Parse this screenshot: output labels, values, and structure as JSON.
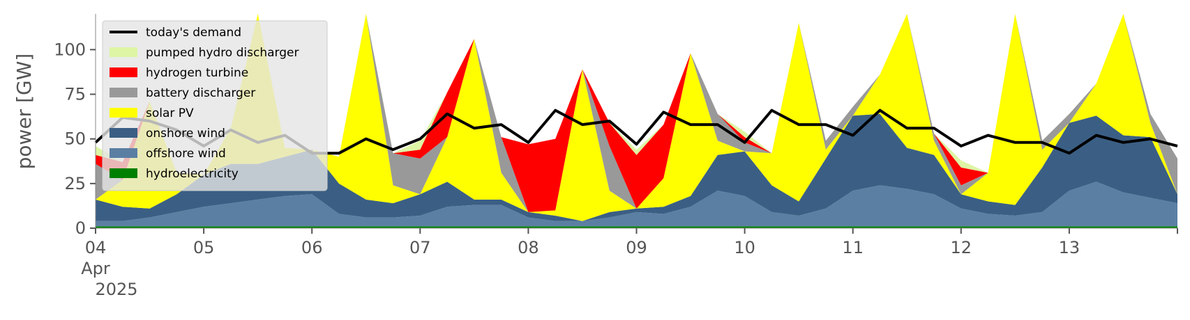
{
  "chart_data": {
    "type": "area",
    "ylabel": "power [GW]",
    "ylim": [
      0,
      120
    ],
    "xlim": [
      "2025-04-04T00:00",
      "2025-04-14T00:00"
    ],
    "yticks": [
      0,
      25,
      50,
      75,
      100
    ],
    "xticks": [
      {
        "x": "2025-04-04",
        "label": "04",
        "sublabels": [
          "Apr",
          "2025"
        ]
      },
      {
        "x": "2025-04-05",
        "label": "05"
      },
      {
        "x": "2025-04-06",
        "label": "06"
      },
      {
        "x": "2025-04-07",
        "label": "07"
      },
      {
        "x": "2025-04-08",
        "label": "08"
      },
      {
        "x": "2025-04-09",
        "label": "09"
      },
      {
        "x": "2025-04-10",
        "label": "10"
      },
      {
        "x": "2025-04-11",
        "label": "11"
      },
      {
        "x": "2025-04-12",
        "label": "12"
      },
      {
        "x": "2025-04-13",
        "label": "13"
      }
    ],
    "grid": false,
    "legend_position": "top-left",
    "x": [
      "2025-04-04 00:00",
      "2025-04-04 06:00",
      "2025-04-04 12:00",
      "2025-04-04 18:00",
      "2025-04-05 00:00",
      "2025-04-05 06:00",
      "2025-04-05 12:00",
      "2025-04-05 18:00",
      "2025-04-06 00:00",
      "2025-04-06 06:00",
      "2025-04-06 12:00",
      "2025-04-06 18:00",
      "2025-04-07 00:00",
      "2025-04-07 06:00",
      "2025-04-07 12:00",
      "2025-04-07 18:00",
      "2025-04-08 00:00",
      "2025-04-08 06:00",
      "2025-04-08 12:00",
      "2025-04-08 18:00",
      "2025-04-09 00:00",
      "2025-04-09 06:00",
      "2025-04-09 12:00",
      "2025-04-09 18:00",
      "2025-04-10 00:00",
      "2025-04-10 06:00",
      "2025-04-10 12:00",
      "2025-04-10 18:00",
      "2025-04-11 00:00",
      "2025-04-11 06:00",
      "2025-04-11 12:00",
      "2025-04-11 18:00",
      "2025-04-12 00:00",
      "2025-04-12 06:00",
      "2025-04-12 12:00",
      "2025-04-12 18:00",
      "2025-04-13 00:00",
      "2025-04-13 06:00",
      "2025-04-13 12:00",
      "2025-04-13 18:00",
      "2025-04-14 00:00"
    ],
    "series": [
      {
        "name": "hydroelectricity",
        "color": "#008000",
        "values": [
          1,
          1,
          1,
          1,
          1,
          1,
          1,
          1,
          1,
          1,
          1,
          1,
          1,
          1,
          1,
          1,
          1,
          1,
          1,
          1,
          1,
          1,
          1,
          1,
          1,
          1,
          1,
          1,
          1,
          1,
          1,
          1,
          1,
          1,
          1,
          1,
          1,
          1,
          1,
          1,
          1
        ]
      },
      {
        "name": "offshore wind",
        "color": "#5b7fa3",
        "values": [
          3,
          3,
          5,
          8,
          11,
          13,
          15,
          17,
          18,
          7,
          5,
          5,
          6,
          11,
          12,
          12,
          5,
          3,
          3,
          5,
          8,
          7,
          11,
          20,
          17,
          8,
          6,
          10,
          20,
          23,
          21,
          18,
          10,
          7,
          6,
          8,
          20,
          25,
          19,
          16,
          13
        ]
      },
      {
        "name": "onshore wind",
        "color": "#3b5f84",
        "values": [
          12,
          8,
          5,
          10,
          18,
          22,
          20,
          22,
          25,
          17,
          10,
          8,
          12,
          14,
          3,
          3,
          3,
          3,
          0,
          3,
          2,
          4,
          6,
          20,
          25,
          15,
          8,
          28,
          42,
          40,
          23,
          22,
          8,
          7,
          6,
          25,
          38,
          37,
          32,
          34,
          5
        ]
      },
      {
        "name": "solar PV",
        "color": "#ffff00",
        "values": [
          0,
          15,
          60,
          12,
          0,
          20,
          90,
          5,
          0,
          15,
          110,
          10,
          0,
          25,
          90,
          15,
          0,
          3,
          85,
          12,
          0,
          16,
          80,
          8,
          0,
          18,
          100,
          5,
          0,
          22,
          130,
          8,
          0,
          16,
          115,
          10,
          0,
          18,
          110,
          8,
          0
        ]
      },
      {
        "name": "battery discharger",
        "color": "#999999",
        "values": [
          20,
          0,
          0,
          0,
          0,
          0,
          0,
          0,
          0,
          0,
          0,
          18,
          20,
          0,
          0,
          20,
          0,
          0,
          0,
          25,
          0,
          0,
          0,
          15,
          5,
          0,
          0,
          5,
          5,
          0,
          0,
          4,
          5,
          0,
          0,
          5,
          5,
          0,
          0,
          5,
          20
        ]
      },
      {
        "name": "hydrogen turbine",
        "color": "#ff0000",
        "values": [
          5,
          10,
          0,
          0,
          0,
          0,
          0,
          0,
          0,
          0,
          0,
          0,
          5,
          25,
          0,
          0,
          38,
          40,
          0,
          13,
          30,
          30,
          0,
          0,
          3,
          0,
          0,
          0,
          0,
          0,
          0,
          0,
          10,
          0,
          0,
          0,
          0,
          0,
          0,
          0,
          0
        ]
      },
      {
        "name": "pumped hydro discharger",
        "color": "#ddf5a4",
        "values": [
          5,
          0,
          0,
          0,
          0,
          0,
          0,
          0,
          0,
          0,
          0,
          0,
          5,
          0,
          0,
          0,
          0,
          0,
          0,
          0,
          3,
          0,
          0,
          0,
          3,
          0,
          0,
          0,
          0,
          0,
          0,
          0,
          4,
          0,
          0,
          0,
          0,
          0,
          0,
          0,
          0
        ]
      },
      {
        "name": "today's demand",
        "type": "line",
        "color": "#000000",
        "values": [
          48,
          62,
          60,
          55,
          46,
          55,
          48,
          52,
          42,
          42,
          50,
          44,
          50,
          64,
          56,
          58,
          48,
          66,
          58,
          60,
          47,
          65,
          58,
          58,
          48,
          66,
          58,
          58,
          52,
          66,
          56,
          56,
          46,
          52,
          48,
          48,
          42,
          52,
          48,
          50,
          46
        ]
      }
    ],
    "legend": [
      {
        "label": "today's demand",
        "color": "#000000",
        "kind": "line"
      },
      {
        "label": "pumped hydro discharger",
        "color": "#ddf5a4",
        "kind": "patch"
      },
      {
        "label": "hydrogen turbine",
        "color": "#ff0000",
        "kind": "patch"
      },
      {
        "label": "battery discharger",
        "color": "#999999",
        "kind": "patch"
      },
      {
        "label": "solar PV",
        "color": "#ffff00",
        "kind": "patch"
      },
      {
        "label": "onshore wind",
        "color": "#3b5f84",
        "kind": "patch"
      },
      {
        "label": "offshore wind",
        "color": "#5b7fa3",
        "kind": "patch"
      },
      {
        "label": "hydroelectricity",
        "color": "#008000",
        "kind": "patch"
      }
    ]
  }
}
